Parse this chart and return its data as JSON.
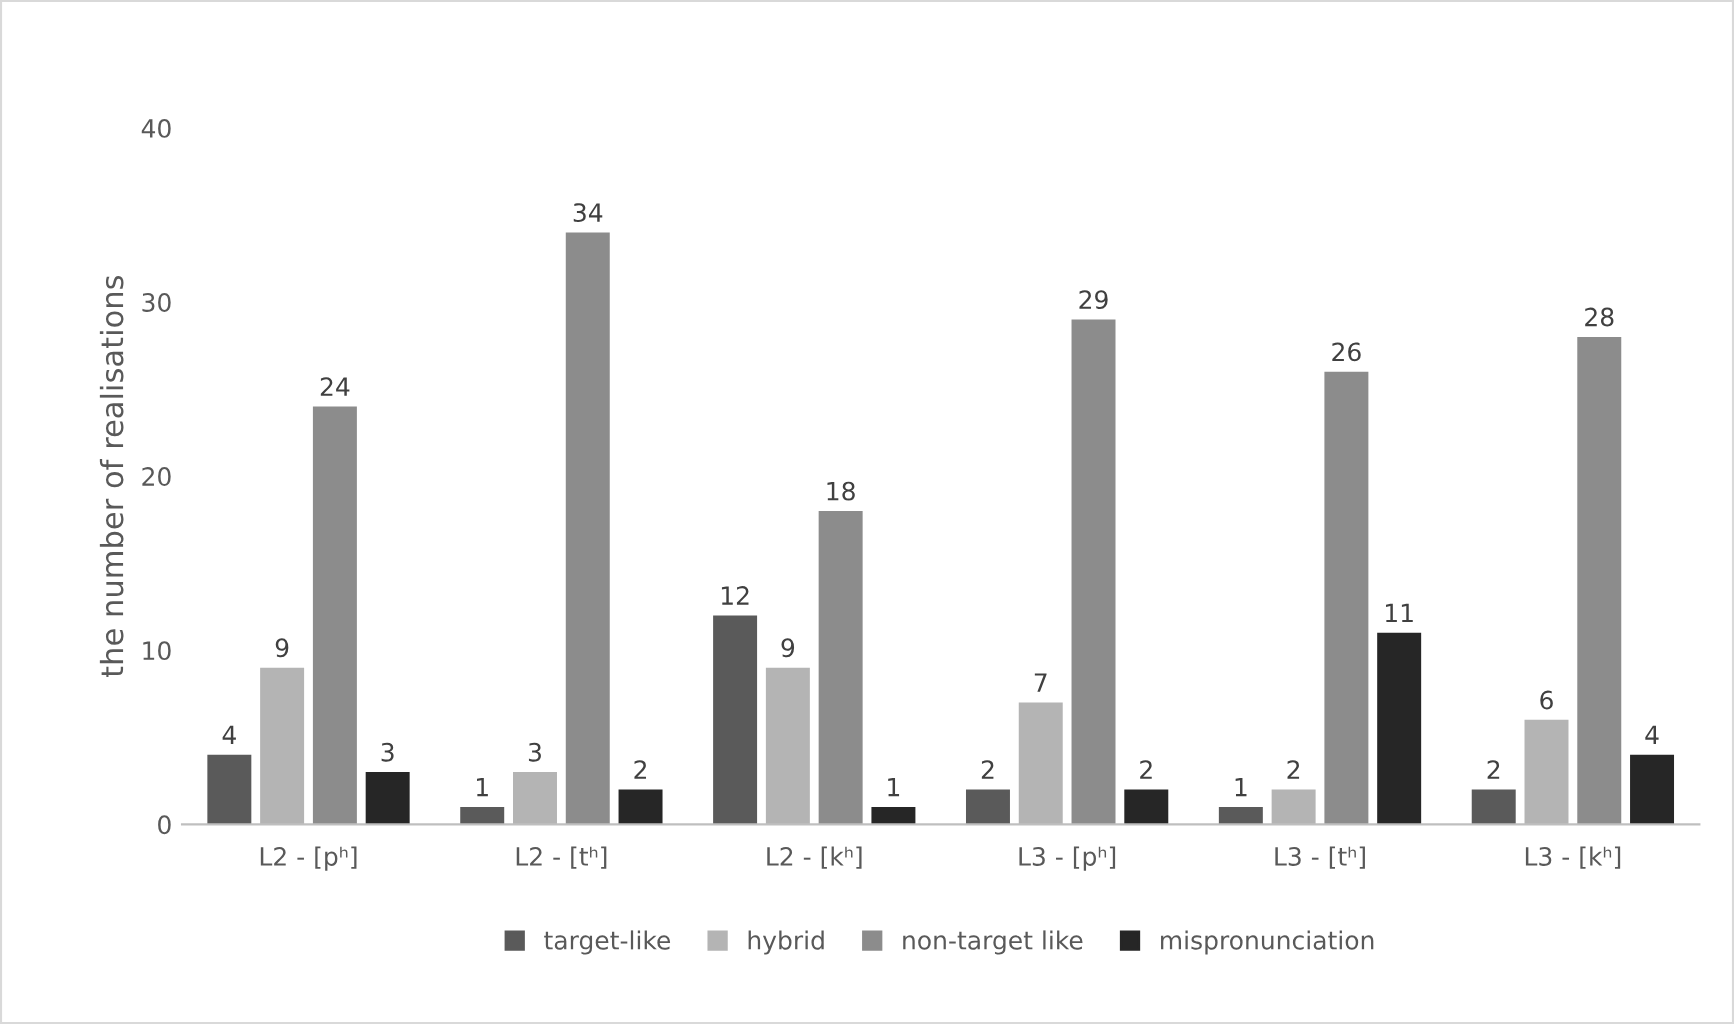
{
  "chart_data": {
    "type": "bar",
    "ylabel": "the number of realisations",
    "categories": [
      "L2 - [pʰ]",
      "L2 - [tʰ]",
      "L2 - [kʰ]",
      "L3 - [pʰ]",
      "L3 - [tʰ]",
      "L3 - [kʰ]"
    ],
    "series": [
      {
        "name": "target-like",
        "color": "#5a5a5a",
        "values": [
          4,
          1,
          12,
          2,
          1,
          2
        ]
      },
      {
        "name": "hybrid",
        "color": "#b4b4b4",
        "values": [
          9,
          3,
          9,
          7,
          2,
          6
        ]
      },
      {
        "name": "non-target like",
        "color": "#8c8c8c",
        "values": [
          24,
          34,
          18,
          29,
          26,
          28
        ]
      },
      {
        "name": "mispronunciation",
        "color": "#262626",
        "values": [
          3,
          2,
          1,
          2,
          11,
          4
        ]
      }
    ],
    "ylim": [
      0,
      40
    ],
    "yticks": [
      0,
      10,
      20,
      30,
      40
    ],
    "grid": false,
    "legend": "bottom",
    "data_labels": true
  }
}
